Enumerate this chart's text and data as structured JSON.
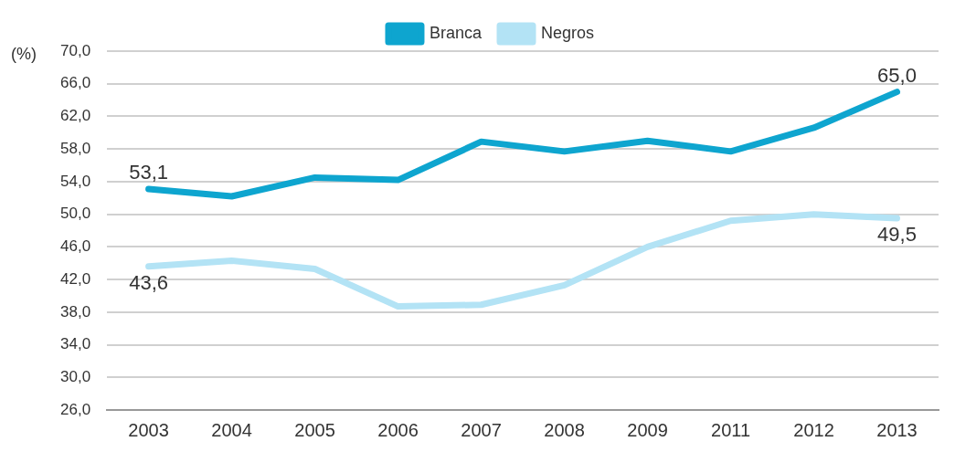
{
  "chart_data": {
    "type": "line",
    "ylabel": "(%)",
    "categories": [
      "2003",
      "2004",
      "2005",
      "2006",
      "2007",
      "2008",
      "2009",
      "2011",
      "2012",
      "2013"
    ],
    "series": [
      {
        "name": "Branca",
        "color": "#0ea5cf",
        "values": [
          53.1,
          52.2,
          54.5,
          54.2,
          58.9,
          57.7,
          59.0,
          57.7,
          60.6,
          65.0
        ],
        "value_labels": [
          "53,1",
          null,
          null,
          null,
          null,
          null,
          null,
          null,
          null,
          "65,0"
        ]
      },
      {
        "name": "Negros",
        "color": "#b3e3f5",
        "values": [
          43.6,
          44.3,
          43.3,
          38.7,
          38.9,
          41.3,
          46.0,
          49.2,
          50.0,
          49.5
        ],
        "value_labels": [
          "43,6",
          null,
          null,
          null,
          null,
          null,
          null,
          null,
          null,
          "49,5"
        ]
      }
    ],
    "ylim": [
      26,
      70
    ],
    "yticks": [
      {
        "value": 26,
        "label": "26,0"
      },
      {
        "value": 30,
        "label": "30,0"
      },
      {
        "value": 34,
        "label": "34,0"
      },
      {
        "value": 38,
        "label": "38,0"
      },
      {
        "value": 42,
        "label": "42,0"
      },
      {
        "value": 46,
        "label": "46,0"
      },
      {
        "value": 50,
        "label": "50,0"
      },
      {
        "value": 54,
        "label": "54,0"
      },
      {
        "value": 58,
        "label": "58,0"
      },
      {
        "value": 62,
        "label": "62,0"
      },
      {
        "value": 66,
        "label": "66,0"
      },
      {
        "value": 70,
        "label": "70,0"
      }
    ],
    "grid": "y",
    "legend": "top",
    "marker": "none",
    "line_style": "solid"
  }
}
